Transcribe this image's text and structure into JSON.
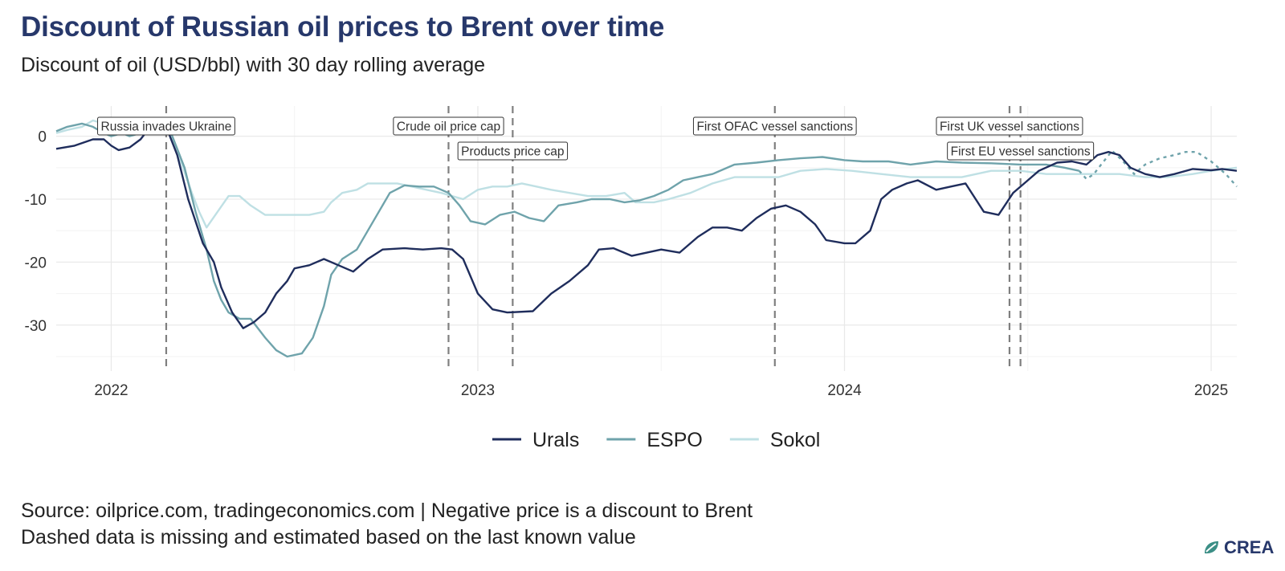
{
  "header": {
    "title": "Discount of Russian oil prices to Brent over time",
    "subtitle": "Discount of oil (USD/bbl) with 30 day rolling average"
  },
  "footer": {
    "source": "Source: oilprice.com, tradingeconomics.com | Negative price is a discount to Brent",
    "note": "Dashed data is missing and estimated based on the last known value",
    "logo_text": "CREA",
    "logo_icon": "crea-leaf-icon"
  },
  "chart_data": {
    "type": "line",
    "title": "Discount of Russian oil prices to Brent over time",
    "subtitle": "Discount of oil (USD/bbl) with 30 day rolling average",
    "xlabel": "",
    "ylabel": "",
    "xlim": [
      2021.85,
      2025.07
    ],
    "ylim": [
      -37.3,
      4.8
    ],
    "x_ticks": [
      2022,
      2023,
      2024,
      2025
    ],
    "y_ticks": [
      0,
      -10,
      -20,
      -30
    ],
    "grid": true,
    "legend_position": "bottom",
    "series": [
      {
        "name": "Urals",
        "color": "#1f2d5c",
        "points": [
          [
            2021.85,
            -2
          ],
          [
            2021.9,
            -1.5
          ],
          [
            2021.95,
            -0.5
          ],
          [
            2021.98,
            -0.5
          ],
          [
            2022.0,
            -1.5
          ],
          [
            2022.02,
            -2.2
          ],
          [
            2022.05,
            -1.8
          ],
          [
            2022.08,
            -0.5
          ],
          [
            2022.1,
            1
          ],
          [
            2022.12,
            2
          ],
          [
            2022.15,
            1.5
          ],
          [
            2022.18,
            -3
          ],
          [
            2022.21,
            -10
          ],
          [
            2022.25,
            -17
          ],
          [
            2022.28,
            -20
          ],
          [
            2022.3,
            -24
          ],
          [
            2022.33,
            -28
          ],
          [
            2022.36,
            -30.5
          ],
          [
            2022.39,
            -29.5
          ],
          [
            2022.42,
            -28
          ],
          [
            2022.45,
            -25
          ],
          [
            2022.48,
            -23
          ],
          [
            2022.5,
            -21
          ],
          [
            2022.54,
            -20.5
          ],
          [
            2022.58,
            -19.5
          ],
          [
            2022.62,
            -20.5
          ],
          [
            2022.66,
            -21.5
          ],
          [
            2022.7,
            -19.5
          ],
          [
            2022.74,
            -18
          ],
          [
            2022.8,
            -17.8
          ],
          [
            2022.85,
            -18
          ],
          [
            2022.9,
            -17.8
          ],
          [
            2022.93,
            -18
          ],
          [
            2022.96,
            -19.5
          ],
          [
            2023.0,
            -25
          ],
          [
            2023.04,
            -27.5
          ],
          [
            2023.08,
            -28
          ],
          [
            2023.15,
            -27.8
          ],
          [
            2023.2,
            -25
          ],
          [
            2023.25,
            -23
          ],
          [
            2023.3,
            -20.5
          ],
          [
            2023.33,
            -18
          ],
          [
            2023.37,
            -17.8
          ],
          [
            2023.42,
            -19
          ],
          [
            2023.5,
            -18
          ],
          [
            2023.55,
            -18.5
          ],
          [
            2023.6,
            -16
          ],
          [
            2023.64,
            -14.5
          ],
          [
            2023.68,
            -14.5
          ],
          [
            2023.72,
            -15
          ],
          [
            2023.76,
            -13
          ],
          [
            2023.8,
            -11.5
          ],
          [
            2023.84,
            -11
          ],
          [
            2023.88,
            -12
          ],
          [
            2023.92,
            -14
          ],
          [
            2023.95,
            -16.5
          ],
          [
            2024.0,
            -17
          ],
          [
            2024.03,
            -17
          ],
          [
            2024.07,
            -15
          ],
          [
            2024.1,
            -10
          ],
          [
            2024.13,
            -8.5
          ],
          [
            2024.17,
            -7.5
          ],
          [
            2024.2,
            -7
          ],
          [
            2024.25,
            -8.5
          ],
          [
            2024.29,
            -8
          ],
          [
            2024.33,
            -7.5
          ],
          [
            2024.38,
            -12
          ],
          [
            2024.42,
            -12.5
          ],
          [
            2024.46,
            -9
          ],
          [
            2024.5,
            -7
          ],
          [
            2024.53,
            -5.5
          ],
          [
            2024.58,
            -4.2
          ],
          [
            2024.62,
            -4
          ],
          [
            2024.66,
            -4.5
          ],
          [
            2024.69,
            -3
          ],
          [
            2024.72,
            -2.5
          ],
          [
            2024.75,
            -3
          ],
          [
            2024.78,
            -5
          ],
          [
            2024.82,
            -6
          ],
          [
            2024.86,
            -6.5
          ],
          [
            2024.9,
            -6
          ],
          [
            2024.95,
            -5.2
          ],
          [
            2025.0,
            -5.4
          ],
          [
            2025.03,
            -5.2
          ],
          [
            2025.07,
            -5.5
          ]
        ],
        "dashed_from_x": null
      },
      {
        "name": "ESPO",
        "color": "#6fa3ab",
        "points": [
          [
            2021.85,
            0.8
          ],
          [
            2021.88,
            1.5
          ],
          [
            2021.92,
            2
          ],
          [
            2021.95,
            1.5
          ],
          [
            2021.98,
            0.5
          ],
          [
            2022.0,
            0
          ],
          [
            2022.03,
            0.5
          ],
          [
            2022.05,
            0
          ],
          [
            2022.08,
            0.5
          ],
          [
            2022.1,
            1
          ],
          [
            2022.14,
            1.8
          ],
          [
            2022.16,
            1
          ],
          [
            2022.2,
            -5
          ],
          [
            2022.23,
            -12
          ],
          [
            2022.26,
            -18
          ],
          [
            2022.28,
            -23
          ],
          [
            2022.3,
            -26
          ],
          [
            2022.32,
            -28
          ],
          [
            2022.35,
            -29
          ],
          [
            2022.38,
            -29
          ],
          [
            2022.42,
            -32
          ],
          [
            2022.45,
            -34
          ],
          [
            2022.48,
            -35
          ],
          [
            2022.52,
            -34.5
          ],
          [
            2022.55,
            -32
          ],
          [
            2022.58,
            -27
          ],
          [
            2022.6,
            -22
          ],
          [
            2022.63,
            -19.5
          ],
          [
            2022.67,
            -18
          ],
          [
            2022.7,
            -15
          ],
          [
            2022.73,
            -12
          ],
          [
            2022.76,
            -9
          ],
          [
            2022.8,
            -7.8
          ],
          [
            2022.84,
            -8
          ],
          [
            2022.88,
            -8
          ],
          [
            2022.92,
            -9
          ],
          [
            2022.95,
            -11
          ],
          [
            2022.98,
            -13.5
          ],
          [
            2023.02,
            -14
          ],
          [
            2023.06,
            -12.5
          ],
          [
            2023.1,
            -12
          ],
          [
            2023.14,
            -13
          ],
          [
            2023.18,
            -13.5
          ],
          [
            2023.22,
            -11
          ],
          [
            2023.27,
            -10.5
          ],
          [
            2023.31,
            -10
          ],
          [
            2023.36,
            -10
          ],
          [
            2023.4,
            -10.5
          ],
          [
            2023.44,
            -10.2
          ],
          [
            2023.48,
            -9.5
          ],
          [
            2023.52,
            -8.5
          ],
          [
            2023.56,
            -7
          ],
          [
            2023.6,
            -6.5
          ],
          [
            2023.64,
            -6
          ],
          [
            2023.7,
            -4.5
          ],
          [
            2023.76,
            -4.2
          ],
          [
            2023.82,
            -3.8
          ],
          [
            2023.88,
            -3.5
          ],
          [
            2023.94,
            -3.3
          ],
          [
            2024.0,
            -3.8
          ],
          [
            2024.05,
            -4
          ],
          [
            2024.12,
            -4
          ],
          [
            2024.18,
            -4.5
          ],
          [
            2024.25,
            -4
          ],
          [
            2024.32,
            -4.2
          ],
          [
            2024.4,
            -4.3
          ],
          [
            2024.48,
            -4.5
          ],
          [
            2024.55,
            -4.5
          ],
          [
            2024.6,
            -5
          ],
          [
            2024.64,
            -5.5
          ],
          [
            2024.66,
            -6.8
          ],
          [
            2024.68,
            -6
          ],
          [
            2024.7,
            -4.5
          ],
          [
            2024.73,
            -2.3
          ],
          [
            2024.76,
            -4
          ],
          [
            2024.79,
            -6
          ],
          [
            2024.82,
            -4.5
          ],
          [
            2024.86,
            -3.5
          ],
          [
            2024.9,
            -3
          ],
          [
            2024.93,
            -2.5
          ],
          [
            2024.96,
            -2.5
          ],
          [
            2025.0,
            -4
          ],
          [
            2025.04,
            -6
          ],
          [
            2025.07,
            -8
          ]
        ],
        "dashed_from_x": 2024.66
      },
      {
        "name": "Sokol",
        "color": "#bfe0e4",
        "points": [
          [
            2021.85,
            0.5
          ],
          [
            2021.88,
            1
          ],
          [
            2021.92,
            1.5
          ],
          [
            2021.95,
            2.5
          ],
          [
            2021.98,
            2
          ],
          [
            2022.02,
            1
          ],
          [
            2022.05,
            1.5
          ],
          [
            2022.08,
            1
          ],
          [
            2022.1,
            1
          ],
          [
            2022.14,
            1.5
          ],
          [
            2022.16,
            1
          ],
          [
            2022.19,
            -4
          ],
          [
            2022.22,
            -9
          ],
          [
            2022.24,
            -12
          ],
          [
            2022.26,
            -14.5
          ],
          [
            2022.29,
            -12
          ],
          [
            2022.32,
            -9.5
          ],
          [
            2022.35,
            -9.5
          ],
          [
            2022.38,
            -11
          ],
          [
            2022.42,
            -12.5
          ],
          [
            2022.46,
            -12.5
          ],
          [
            2022.5,
            -12.5
          ],
          [
            2022.54,
            -12.5
          ],
          [
            2022.58,
            -12
          ],
          [
            2022.6,
            -10.5
          ],
          [
            2022.63,
            -9
          ],
          [
            2022.67,
            -8.5
          ],
          [
            2022.7,
            -7.5
          ],
          [
            2022.74,
            -7.5
          ],
          [
            2022.78,
            -7.5
          ],
          [
            2022.82,
            -8
          ],
          [
            2022.86,
            -8.5
          ],
          [
            2022.9,
            -9
          ],
          [
            2022.93,
            -9.5
          ],
          [
            2022.96,
            -10
          ],
          [
            2023.0,
            -8.5
          ],
          [
            2023.04,
            -8
          ],
          [
            2023.08,
            -8
          ],
          [
            2023.12,
            -7.5
          ],
          [
            2023.16,
            -8
          ],
          [
            2023.2,
            -8.5
          ],
          [
            2023.25,
            -9
          ],
          [
            2023.3,
            -9.5
          ],
          [
            2023.35,
            -9.5
          ],
          [
            2023.4,
            -9
          ],
          [
            2023.43,
            -10.5
          ],
          [
            2023.48,
            -10.5
          ],
          [
            2023.52,
            -10
          ],
          [
            2023.58,
            -9
          ],
          [
            2023.64,
            -7.5
          ],
          [
            2023.7,
            -6.5
          ],
          [
            2023.76,
            -6.5
          ],
          [
            2023.82,
            -6.5
          ],
          [
            2023.88,
            -5.5
          ],
          [
            2023.95,
            -5.2
          ],
          [
            2024.02,
            -5.5
          ],
          [
            2024.1,
            -6
          ],
          [
            2024.18,
            -6.5
          ],
          [
            2024.25,
            -6.5
          ],
          [
            2024.32,
            -6.5
          ],
          [
            2024.4,
            -5.5
          ],
          [
            2024.48,
            -5.5
          ],
          [
            2024.55,
            -6
          ],
          [
            2024.62,
            -6
          ],
          [
            2024.68,
            -6
          ],
          [
            2024.75,
            -6
          ],
          [
            2024.82,
            -6.5
          ],
          [
            2024.88,
            -6.5
          ],
          [
            2024.95,
            -6
          ],
          [
            2025.0,
            -5.5
          ],
          [
            2025.07,
            -5
          ]
        ],
        "dashed_from_x": null
      }
    ],
    "annotations": [
      {
        "label": "Russia invades Ukraine",
        "x": 2022.15,
        "row": 0,
        "anchor": "end"
      },
      {
        "label": "Crude oil price cap",
        "x": 2022.92,
        "row": 0,
        "anchor": "end"
      },
      {
        "label": "Products price cap",
        "x": 2023.095,
        "row": 1,
        "anchor": "middle"
      },
      {
        "label": "First OFAC vessel sanctions",
        "x": 2023.81,
        "row": 0,
        "anchor": "middle"
      },
      {
        "label": "First UK vessel sanctions",
        "x": 2024.45,
        "row": 0,
        "anchor": "middle"
      },
      {
        "label": "First EU vessel sanctions",
        "x": 2024.48,
        "row": 1,
        "anchor": "middle"
      }
    ]
  }
}
